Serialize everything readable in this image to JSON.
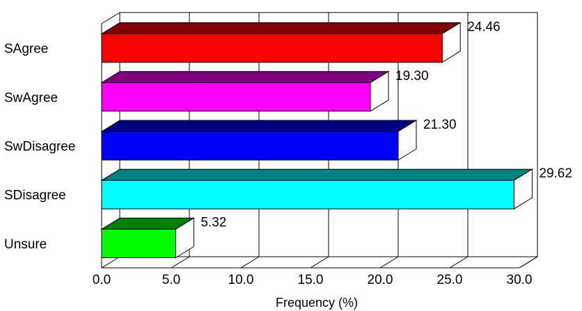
{
  "chart_data": {
    "type": "bar",
    "orientation": "horizontal",
    "style": "3d",
    "categories": [
      "SAgree",
      "SwAgree",
      "SwDisagree",
      "SDisagree",
      "Unsure"
    ],
    "values": [
      24.46,
      19.3,
      21.3,
      29.62,
      5.32
    ],
    "value_labels": [
      "24.46",
      "19.30",
      "21.30",
      "29.62",
      "5.32"
    ],
    "colors": [
      "#ff0000",
      "#ff00ff",
      "#0000ff",
      "#00ffff",
      "#00ff00"
    ],
    "top_colors": [
      "#800000",
      "#800080",
      "#000080",
      "#008080",
      "#008000"
    ],
    "xlim": [
      0,
      30
    ],
    "xticks": [
      0,
      5,
      10,
      15,
      20,
      25,
      30
    ],
    "xtick_labels": [
      "0.0",
      "5.0",
      "10.0",
      "15.0",
      "20.0",
      "25.0",
      "30.0"
    ],
    "xlabel": "Frequency (%)",
    "grid": true,
    "legend": false
  }
}
